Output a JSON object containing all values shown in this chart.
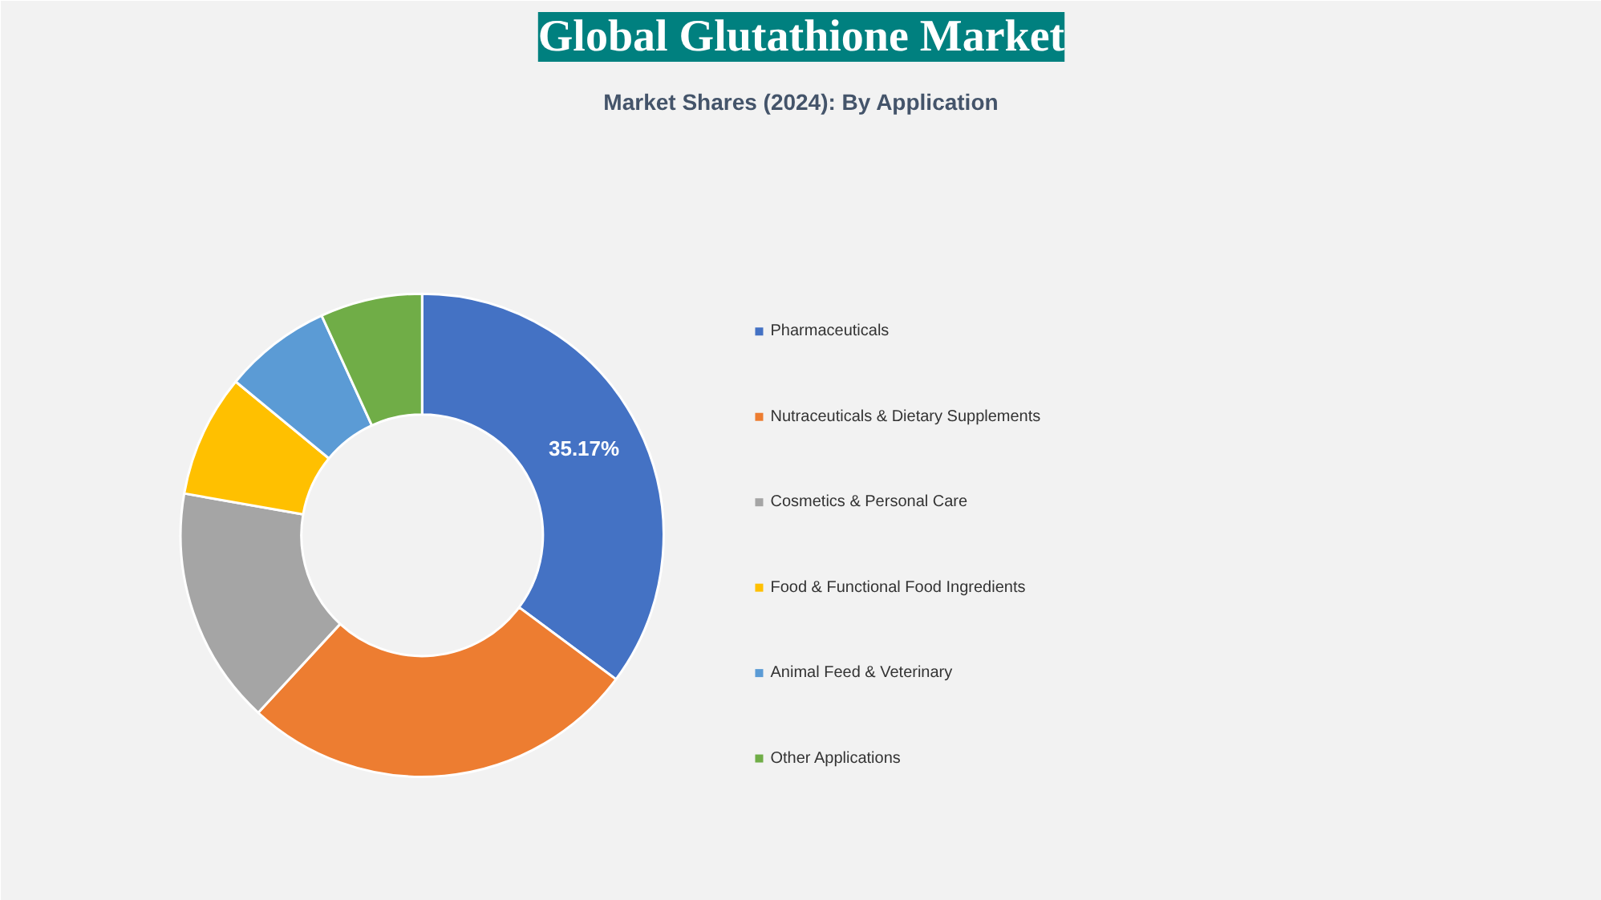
{
  "chart_data": {
    "type": "donut",
    "title": "Global Glutathione Market",
    "subtitle": "Market Shares (2024): By Application",
    "categories": [
      "Pharmaceuticals",
      "Nutraceuticals & Dietary Supplements",
      "Cosmetics & Personal Care",
      "Food & Functional Food Ingredients",
      "Animal Feed & Veterinary",
      "Other Applications"
    ],
    "values": [
      35.17,
      26.7,
      15.9,
      8.2,
      7.2,
      6.83
    ],
    "colors": [
      "#4472c4",
      "#ed7d31",
      "#a5a5a5",
      "#ffc000",
      "#5b9bd5",
      "#70ad47"
    ],
    "value_labels": [
      "35.17%",
      null,
      null,
      null,
      null,
      null
    ],
    "legend": "right"
  }
}
